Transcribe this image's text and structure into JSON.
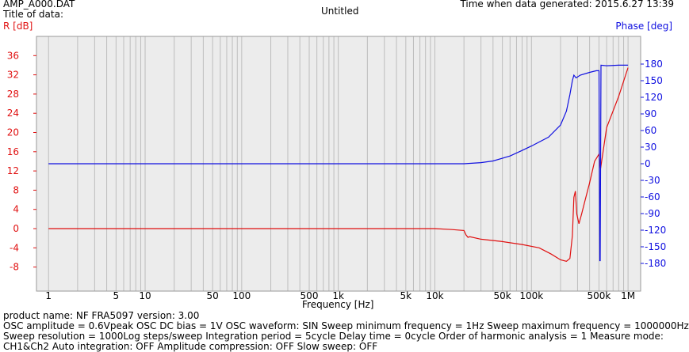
{
  "header": {
    "file_name": "AMP_A000.DAT",
    "title_label": "Title of data:",
    "title": "Untitled",
    "generated": "Time when data generated: 2015.6.27 13:39"
  },
  "colors": {
    "gain": "#e01010",
    "phase": "#1010e0",
    "plot_bg": "#ececec",
    "grid": "#bdbdbd"
  },
  "chart_data": {
    "type": "line",
    "xlabel": "Frequency [Hz]",
    "ylabel_left": "R [dB]",
    "ylabel_right": "Phase [deg]",
    "x_scale": "log",
    "xlim": [
      0.75,
      1350000
    ],
    "ylim_left": [
      -13,
      40
    ],
    "ylim_right": [
      -230,
      230
    ],
    "grid": true,
    "x_ticks": [
      {
        "v": 1,
        "label": "1"
      },
      {
        "v": 5,
        "label": "5"
      },
      {
        "v": 10,
        "label": "10"
      },
      {
        "v": 50,
        "label": "50"
      },
      {
        "v": 100,
        "label": "100"
      },
      {
        "v": 500,
        "label": "500"
      },
      {
        "v": 1000,
        "label": "1k"
      },
      {
        "v": 5000,
        "label": "5k"
      },
      {
        "v": 10000,
        "label": "10k"
      },
      {
        "v": 50000,
        "label": "50k"
      },
      {
        "v": 100000,
        "label": "100k"
      },
      {
        "v": 500000,
        "label": "500k"
      },
      {
        "v": 1000000,
        "label": "1M"
      }
    ],
    "y_ticks_left": [
      36,
      32,
      28,
      24,
      20,
      16,
      12,
      8,
      4,
      0,
      -4,
      -8
    ],
    "y_ticks_right": [
      180,
      150,
      120,
      90,
      60,
      30,
      0,
      -30,
      -60,
      -90,
      -120,
      -150,
      -180
    ],
    "series": [
      {
        "axis": "left",
        "x": [
          1,
          10,
          100,
          1000,
          10000,
          15000,
          20000,
          21000,
          22000,
          23000,
          30000,
          50000,
          80000,
          120000,
          160000,
          200000,
          230000,
          250000,
          265000,
          275000,
          285000,
          295000,
          310000,
          330000,
          360000,
          400000,
          450000,
          500000,
          520000,
          600000,
          800000,
          1000000
        ],
        "values": [
          0,
          0,
          0,
          0,
          0,
          -0.2,
          -0.4,
          -1.3,
          -1.8,
          -1.7,
          -2.2,
          -2.7,
          -3.3,
          -4.0,
          -5.3,
          -6.5,
          -6.8,
          -6.2,
          -1.5,
          6.5,
          7.8,
          3.0,
          1.0,
          3.0,
          6.0,
          9.5,
          14.0,
          15.5,
          12.5,
          21.0,
          27.5,
          33.5
        ]
      },
      {
        "axis": "right",
        "x": [
          1,
          10,
          100,
          1000,
          10000,
          20000,
          30000,
          40000,
          60000,
          80000,
          100000,
          150000,
          200000,
          230000,
          250000,
          265000,
          275000,
          290000,
          320000,
          400000,
          470000,
          500000,
          505000,
          510000,
          515000,
          520000,
          525000,
          600000,
          800000,
          1000000
        ],
        "values": [
          0,
          0,
          0,
          0,
          0,
          0,
          2,
          5,
          14,
          24,
          32,
          48,
          70,
          95,
          125,
          150,
          160,
          155,
          160,
          165,
          168,
          168,
          0,
          -175,
          -175,
          0,
          178,
          177,
          178,
          178
        ]
      }
    ]
  },
  "footer": {
    "line1": "product  name:  NF  FRA5097        version:  3.00",
    "line2": "OSC amplitude = 0.6Vpeak  OSC DC bias = 1V  OSC waveform: SIN  Sweep minimum frequency = 1Hz  Sweep maximum frequency = 1000000Hz",
    "line3": "Sweep resolution = 1000Log steps/sweep  Integration period = 5cycle  Delay time = 0cycle  Order of harmonic analysis = 1  Measure mode:",
    "line4": "CH1&Ch2  Auto integration: OFF  Amplitude compression: OFF  Slow sweep: OFF"
  }
}
